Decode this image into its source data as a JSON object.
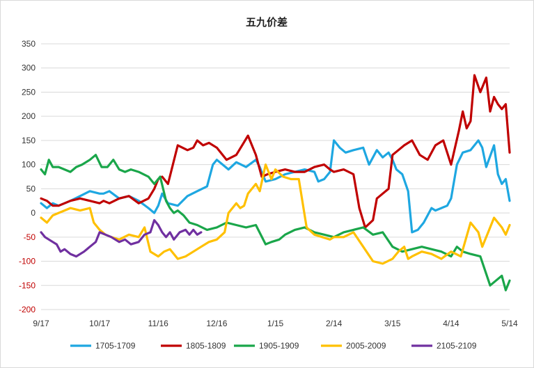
{
  "chart_data": {
    "type": "line",
    "title": "五九价差",
    "xlabel": "",
    "ylabel": "",
    "ylim": [
      -200,
      350
    ],
    "yticks": [
      350,
      300,
      250,
      200,
      150,
      100,
      50,
      0,
      -50,
      -100,
      -150,
      -200
    ],
    "negative_tick_color": "#c00000",
    "grid": "horizontal",
    "legend_position": "bottom",
    "x_axis": {
      "min": 0,
      "max": 240,
      "tick_positions": [
        0,
        30,
        60,
        90,
        120,
        150,
        180,
        210,
        240
      ],
      "tick_labels": [
        "9/17",
        "10/17",
        "11/16",
        "12/16",
        "1/15",
        "2/14",
        "3/15",
        "4/14",
        "5/14"
      ]
    },
    "series": [
      {
        "name": "1705-1709",
        "color": "#1ea7e1",
        "x": [
          0,
          3,
          6,
          9,
          12,
          15,
          20,
          25,
          30,
          32,
          35,
          40,
          45,
          50,
          55,
          58,
          60,
          62,
          65,
          70,
          75,
          80,
          85,
          88,
          90,
          93,
          96,
          100,
          105,
          110,
          112,
          115,
          120,
          125,
          130,
          135,
          140,
          142,
          145,
          148,
          150,
          153,
          156,
          160,
          165,
          168,
          172,
          175,
          178,
          180,
          182,
          185,
          188,
          190,
          193,
          196,
          200,
          202,
          205,
          208,
          210,
          213,
          216,
          220,
          224,
          226,
          228,
          232,
          234,
          236,
          238,
          240
        ],
        "y": [
          20,
          10,
          20,
          15,
          20,
          25,
          35,
          45,
          40,
          40,
          45,
          30,
          35,
          25,
          10,
          0,
          15,
          40,
          20,
          15,
          35,
          45,
          55,
          100,
          110,
          100,
          90,
          105,
          95,
          110,
          95,
          65,
          70,
          80,
          85,
          90,
          85,
          65,
          70,
          85,
          150,
          135,
          125,
          130,
          135,
          100,
          130,
          115,
          125,
          110,
          90,
          80,
          45,
          -40,
          -35,
          -20,
          10,
          5,
          10,
          15,
          30,
          100,
          125,
          130,
          150,
          135,
          95,
          140,
          80,
          60,
          70,
          25
        ]
      },
      {
        "name": "1805-1809",
        "color": "#c00000",
        "x": [
          0,
          3,
          6,
          9,
          12,
          15,
          20,
          25,
          30,
          32,
          35,
          40,
          45,
          50,
          55,
          58,
          60,
          62,
          65,
          70,
          75,
          78,
          80,
          83,
          86,
          90,
          95,
          100,
          103,
          106,
          110,
          113,
          116,
          120,
          125,
          130,
          135,
          140,
          145,
          148,
          150,
          155,
          160,
          163,
          166,
          170,
          172,
          175,
          178,
          180,
          183,
          186,
          190,
          194,
          198,
          202,
          206,
          210,
          214,
          216,
          218,
          220,
          222,
          225,
          228,
          230,
          232,
          234,
          236,
          238,
          240
        ],
        "y": [
          30,
          25,
          15,
          15,
          20,
          25,
          30,
          25,
          20,
          25,
          20,
          30,
          35,
          20,
          30,
          50,
          70,
          75,
          60,
          140,
          130,
          135,
          150,
          140,
          145,
          135,
          110,
          120,
          140,
          160,
          120,
          75,
          80,
          85,
          90,
          85,
          85,
          95,
          100,
          90,
          85,
          90,
          80,
          10,
          -30,
          -15,
          30,
          40,
          50,
          120,
          130,
          140,
          150,
          120,
          110,
          140,
          150,
          100,
          170,
          210,
          175,
          190,
          285,
          250,
          280,
          210,
          240,
          225,
          215,
          225,
          125
        ]
      },
      {
        "name": "1905-1909",
        "color": "#1aa64a",
        "x": [
          0,
          2,
          4,
          6,
          9,
          12,
          15,
          18,
          21,
          25,
          28,
          31,
          34,
          37,
          40,
          43,
          46,
          50,
          55,
          58,
          61,
          64,
          66,
          68,
          70,
          73,
          76,
          80,
          85,
          90,
          95,
          100,
          105,
          110,
          115,
          118,
          122,
          125,
          130,
          135,
          140,
          145,
          150,
          155,
          160,
          165,
          170,
          175,
          180,
          185,
          190,
          195,
          200,
          205,
          210,
          213,
          216,
          220,
          225,
          230,
          233,
          236,
          238,
          240
        ],
        "y": [
          90,
          80,
          110,
          95,
          95,
          90,
          85,
          95,
          100,
          110,
          120,
          95,
          95,
          110,
          90,
          85,
          90,
          85,
          75,
          60,
          75,
          25,
          10,
          0,
          5,
          -5,
          -20,
          -25,
          -35,
          -30,
          -20,
          -25,
          -30,
          -25,
          -65,
          -60,
          -55,
          -45,
          -35,
          -30,
          -40,
          -45,
          -50,
          -40,
          -35,
          -30,
          -45,
          -40,
          -70,
          -80,
          -75,
          -70,
          -75,
          -80,
          -90,
          -70,
          -80,
          -85,
          -90,
          -150,
          -140,
          -130,
          -160,
          -140
        ]
      },
      {
        "name": "2005-2009",
        "color": "#ffc000",
        "x": [
          0,
          3,
          6,
          9,
          12,
          15,
          20,
          25,
          27,
          30,
          33,
          36,
          40,
          45,
          50,
          53,
          56,
          60,
          63,
          66,
          70,
          74,
          78,
          82,
          86,
          90,
          94,
          96,
          100,
          102,
          104,
          106,
          110,
          112,
          115,
          118,
          120,
          124,
          128,
          132,
          136,
          140,
          144,
          148,
          150,
          155,
          160,
          165,
          170,
          175,
          180,
          183,
          186,
          188,
          190,
          195,
          200,
          205,
          210,
          215,
          220,
          224,
          226,
          229,
          232,
          234,
          236,
          238,
          240
        ],
        "y": [
          -10,
          -20,
          -5,
          0,
          5,
          10,
          5,
          10,
          -20,
          -35,
          -45,
          -50,
          -55,
          -45,
          -50,
          -30,
          -80,
          -90,
          -80,
          -75,
          -95,
          -90,
          -80,
          -70,
          -60,
          -55,
          -40,
          0,
          20,
          10,
          15,
          40,
          60,
          45,
          100,
          70,
          90,
          75,
          70,
          70,
          -30,
          -45,
          -50,
          -55,
          -50,
          -50,
          -40,
          -70,
          -100,
          -105,
          -95,
          -80,
          -70,
          -95,
          -90,
          -80,
          -85,
          -95,
          -80,
          -90,
          -20,
          -40,
          -70,
          -40,
          -10,
          -20,
          -30,
          -45,
          -25
        ]
      },
      {
        "name": "2105-2109",
        "color": "#7030a0",
        "x": [
          0,
          2,
          4,
          6,
          8,
          10,
          12,
          15,
          18,
          22,
          25,
          28,
          30,
          33,
          36,
          40,
          43,
          46,
          50,
          53,
          56,
          58,
          60,
          62,
          64,
          66,
          68,
          71,
          74,
          76,
          78,
          80,
          82
        ],
        "y": [
          -40,
          -50,
          -55,
          -60,
          -65,
          -80,
          -75,
          -85,
          -90,
          -80,
          -70,
          -60,
          -40,
          -45,
          -50,
          -60,
          -55,
          -65,
          -60,
          -45,
          -40,
          -15,
          -25,
          -40,
          -50,
          -40,
          -55,
          -40,
          -35,
          -45,
          -35,
          -45,
          -40
        ]
      }
    ]
  }
}
